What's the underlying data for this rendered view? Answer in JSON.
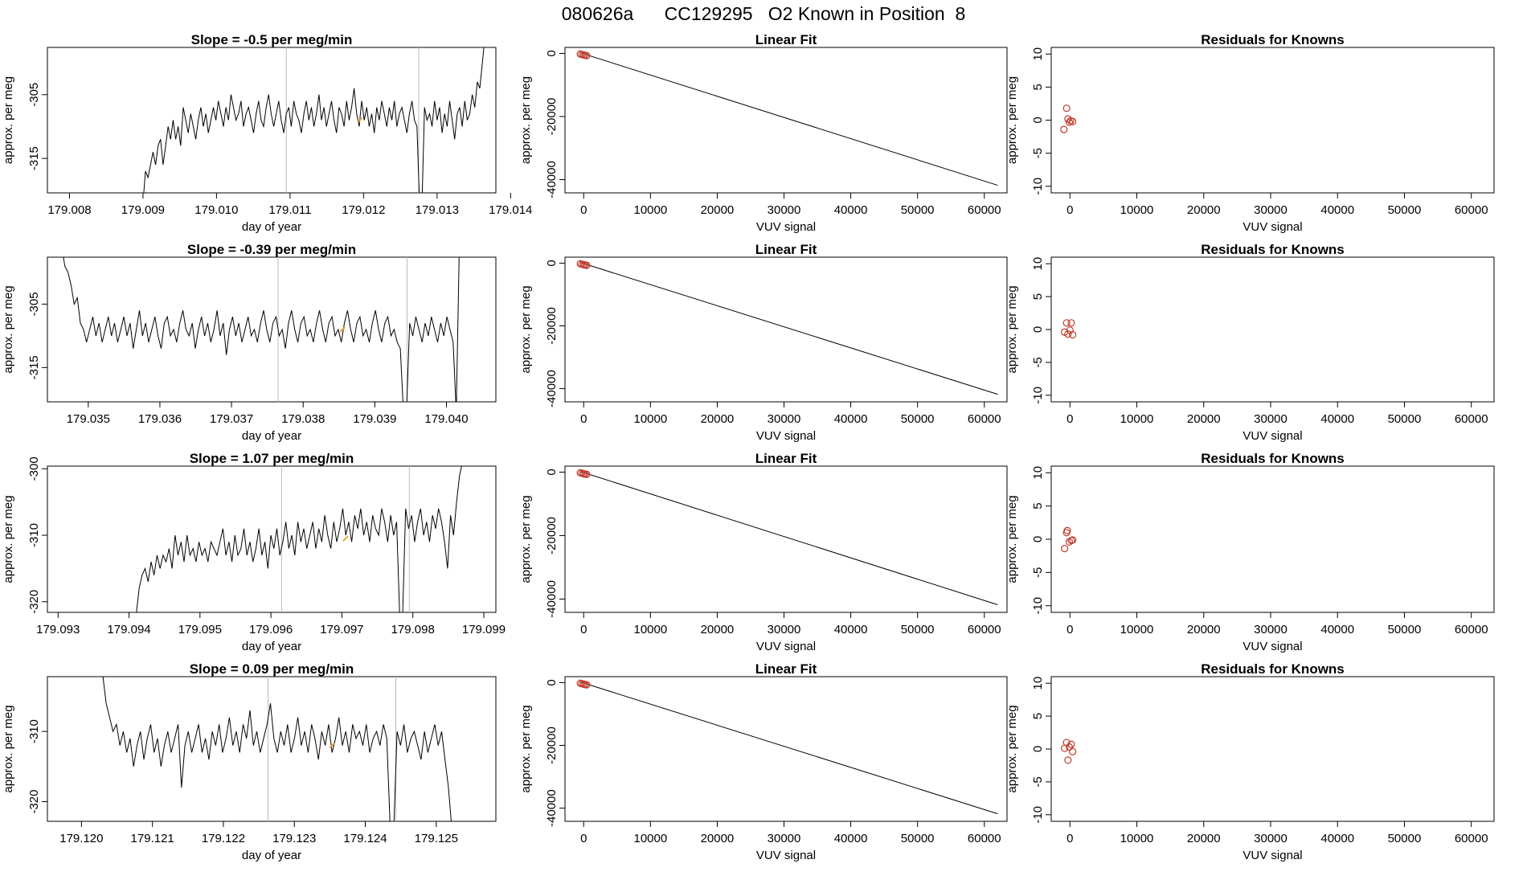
{
  "figure_title": "080626a      CC129295   O2 Known in Position  8",
  "colors": {
    "trace": "#000000",
    "circle": "#c0392b",
    "marker": "#e8a33a",
    "guide": "#bbbbbb",
    "fit": "#000000"
  },
  "chart_data": [
    {
      "type": "line",
      "title": "Slope =  -0.5  per meg/min",
      "xlabel": "day of year",
      "ylabel": "approx. per meg",
      "xlim": [
        179.0077,
        179.0138
      ],
      "ylim": [
        -320.4,
        -297.6
      ],
      "xticks": [
        "179.008",
        "179.009",
        "179.010",
        "179.011",
        "179.012",
        "179.013",
        "179.014"
      ],
      "yticks": [
        "-305",
        "-315"
      ],
      "x_start": 179.009,
      "x_end": 179.01365,
      "vlines": [
        179.01095,
        179.01275
      ],
      "marker": [
        179.01195,
        -309
      ],
      "y": [
        -322,
        -317,
        -318,
        -316,
        -314,
        -316,
        -313,
        -312,
        -316,
        -313,
        -310,
        -312,
        -309,
        -312,
        -310,
        -313,
        -307,
        -309,
        -311,
        -308,
        -310,
        -312,
        -309,
        -307,
        -310,
        -308,
        -311,
        -309,
        -307,
        -309,
        -306,
        -308,
        -310,
        -307,
        -309,
        -305,
        -307,
        -309,
        -308,
        -306,
        -310,
        -308,
        -307,
        -309,
        -311,
        -308,
        -306,
        -309,
        -310,
        -307,
        -305,
        -308,
        -310,
        -308,
        -306,
        -309,
        -311,
        -308,
        -307,
        -310,
        -306,
        -308,
        -309,
        -311,
        -308,
        -306,
        -309,
        -307,
        -310,
        -308,
        -305,
        -309,
        -307,
        -310,
        -308,
        -306,
        -309,
        -311,
        -307,
        -308,
        -310,
        -306,
        -309,
        -307,
        -304,
        -308,
        -310,
        -306,
        -309,
        -307,
        -310,
        -308,
        -311,
        -307,
        -309,
        -306,
        -308,
        -310,
        -307,
        -309,
        -306,
        -310,
        -308,
        -307,
        -309,
        -311,
        -308,
        -306,
        -309,
        -310,
        -322,
        -322,
        -307,
        -309,
        -308,
        -310,
        -306,
        -309,
        -307,
        -311,
        -308,
        -310,
        -306,
        -309,
        -312,
        -308,
        -307,
        -310,
        -306,
        -309,
        -308,
        -305,
        -307,
        -303,
        -304,
        -300,
        -296
      ]
    },
    {
      "type": "line",
      "title": "Slope =  -0.39  per meg/min",
      "xlabel": "day of year",
      "ylabel": "approx. per meg",
      "xlim": [
        179.03443,
        179.04069
      ],
      "ylim": [
        -320.4,
        -297.6
      ],
      "xticks": [
        "179.035",
        "179.036",
        "179.037",
        "179.038",
        "179.039",
        "179.040"
      ],
      "yticks": [
        "-305",
        "-315"
      ],
      "x_start": 179.03463,
      "x_end": 179.04018,
      "vlines": [
        179.03765,
        179.03945
      ],
      "marker": [
        179.03855,
        -309
      ],
      "y": [
        -296,
        -299,
        -300,
        -302,
        -305,
        -304,
        -308,
        -309,
        -311,
        -309,
        -307,
        -310,
        -308,
        -311,
        -309,
        -307,
        -310,
        -308,
        -311,
        -309,
        -307,
        -310,
        -308,
        -312,
        -309,
        -306,
        -310,
        -308,
        -311,
        -309,
        -307,
        -310,
        -312,
        -308,
        -307,
        -310,
        -309,
        -311,
        -308,
        -306,
        -309,
        -310,
        -308,
        -312,
        -309,
        -307,
        -310,
        -308,
        -311,
        -309,
        -306,
        -310,
        -308,
        -313,
        -309,
        -307,
        -310,
        -308,
        -311,
        -309,
        -307,
        -310,
        -309,
        -311,
        -308,
        -306,
        -309,
        -311,
        -308,
        -307,
        -310,
        -309,
        -312,
        -308,
        -306,
        -309,
        -311,
        -308,
        -307,
        -310,
        -309,
        -311,
        -308,
        -306,
        -309,
        -311,
        -308,
        -307,
        -310,
        -309,
        -311,
        -308,
        -306,
        -309,
        -311,
        -308,
        -307,
        -310,
        -309,
        -311,
        -308,
        -306,
        -309,
        -311,
        -308,
        -307,
        -310,
        -309,
        -311,
        -312,
        -322,
        -322,
        -308,
        -310,
        -307,
        -309,
        -311,
        -308,
        -310,
        -307,
        -309,
        -311,
        -308,
        -310,
        -307,
        -309,
        -311,
        -322,
        -296
      ]
    },
    {
      "type": "line",
      "title": "Slope =  1.07  per meg/min",
      "xlabel": "day of year",
      "ylabel": "approx. per meg",
      "xlim": [
        179.09285,
        179.09917
      ],
      "ylim": [
        -321.6,
        -299.6
      ],
      "xticks": [
        "179.093",
        "179.094",
        "179.095",
        "179.096",
        "179.097",
        "179.098",
        "179.099"
      ],
      "yticks": [
        "-300",
        "-310",
        "-320"
      ],
      "x_start": 179.0941,
      "x_end": 179.0987,
      "vlines": [
        179.09615,
        179.09795
      ],
      "marker": [
        179.09705,
        -310.5
      ],
      "y": [
        -322,
        -318,
        -316,
        -315,
        -317,
        -314,
        -316,
        -313,
        -315,
        -313,
        -314,
        -312,
        -315,
        -310,
        -313,
        -311,
        -314,
        -310,
        -313,
        -312,
        -314,
        -311,
        -313,
        -312,
        -314,
        -311,
        -312,
        -313,
        -311,
        -309,
        -313,
        -311,
        -314,
        -310,
        -313,
        -312,
        -309,
        -313,
        -311,
        -314,
        -312,
        -309,
        -313,
        -311,
        -315,
        -310,
        -312,
        -309,
        -313,
        -311,
        -308,
        -312,
        -310,
        -313,
        -308,
        -311,
        -309,
        -312,
        -310,
        -308,
        -312,
        -309,
        -311,
        -307,
        -310,
        -312,
        -308,
        -311,
        -309,
        -306,
        -310,
        -308,
        -311,
        -307,
        -309,
        -306,
        -310,
        -308,
        -311,
        -307,
        -309,
        -310,
        -306,
        -308,
        -311,
        -307,
        -310,
        -308,
        -322,
        -322,
        -306,
        -309,
        -307,
        -311,
        -308,
        -306,
        -310,
        -308,
        -311,
        -307,
        -309,
        -306,
        -308,
        -311,
        -315,
        -307,
        -310,
        -305,
        -301,
        -299
      ]
    },
    {
      "type": "line",
      "title": "Slope =  0.09  per meg/min",
      "xlabel": "day of year",
      "ylabel": "approx. per meg",
      "xlim": [
        179.11952,
        179.12584
      ],
      "ylim": [
        -322.8,
        -302.2
      ],
      "xticks": [
        "179.120",
        "179.121",
        "179.122",
        "179.123",
        "179.124",
        "179.125"
      ],
      "yticks": [
        "-310",
        "-320"
      ],
      "x_start": 179.1203,
      "x_end": 179.12522,
      "vlines": [
        179.12263,
        179.12443
      ],
      "marker": [
        179.12353,
        -312
      ],
      "y": [
        -302,
        -306,
        -308,
        -310,
        -309,
        -312,
        -310,
        -313,
        -311,
        -315,
        -312,
        -310,
        -314,
        -311,
        -309,
        -313,
        -311,
        -315,
        -312,
        -310,
        -313,
        -311,
        -309,
        -318,
        -312,
        -310,
        -313,
        -311,
        -309,
        -313,
        -311,
        -314,
        -310,
        -312,
        -309,
        -313,
        -311,
        -308,
        -312,
        -310,
        -313,
        -309,
        -311,
        -307,
        -312,
        -310,
        -313,
        -311,
        -309,
        -306,
        -311,
        -313,
        -310,
        -312,
        -309,
        -313,
        -311,
        -308,
        -312,
        -310,
        -313,
        -309,
        -311,
        -314,
        -310,
        -312,
        -309,
        -313,
        -311,
        -308,
        -312,
        -310,
        -313,
        -309,
        -311,
        -310,
        -312,
        -309,
        -313,
        -311,
        -310,
        -312,
        -309,
        -311,
        -324,
        -324,
        -310,
        -312,
        -309,
        -313,
        -311,
        -310,
        -312,
        -314,
        -310,
        -313,
        -311,
        -309,
        -312,
        -310,
        -314,
        -318,
        -324
      ]
    },
    {
      "type": "scatter",
      "title": "Linear Fit",
      "xlabel": "VUV signal",
      "ylabel": "approx. per meg",
      "xlim": [
        -2800,
        63400
      ],
      "ylim": [
        -44200,
        1900
      ],
      "xticks": [
        "0",
        "10000",
        "20000",
        "30000",
        "40000",
        "50000",
        "60000"
      ],
      "yticks": [
        "0",
        "-20000",
        "-40000"
      ],
      "points": [
        [
          -500,
          -200
        ],
        [
          -250,
          -350
        ],
        [
          0,
          -500
        ],
        [
          200,
          -600
        ],
        [
          450,
          -700
        ]
      ],
      "line": [
        [
          -500,
          200
        ],
        [
          62000,
          -41800
        ]
      ]
    },
    {
      "type": "scatter",
      "title": "Linear Fit",
      "xlabel": "VUV signal",
      "ylabel": "approx. per meg",
      "xlim": [
        -2800,
        63400
      ],
      "ylim": [
        -44200,
        1900
      ],
      "xticks": [
        "0",
        "10000",
        "20000",
        "30000",
        "40000",
        "50000",
        "60000"
      ],
      "yticks": [
        "0",
        "-20000",
        "-40000"
      ],
      "points": [
        [
          -500,
          -200
        ],
        [
          -250,
          -350
        ],
        [
          0,
          -500
        ],
        [
          200,
          -600
        ],
        [
          450,
          -700
        ]
      ],
      "line": [
        [
          -500,
          200
        ],
        [
          62000,
          -41800
        ]
      ]
    },
    {
      "type": "scatter",
      "title": "Linear Fit",
      "xlabel": "VUV signal",
      "ylabel": "approx. per meg",
      "xlim": [
        -2800,
        63400
      ],
      "ylim": [
        -44200,
        1900
      ],
      "xticks": [
        "0",
        "10000",
        "20000",
        "30000",
        "40000",
        "50000",
        "60000"
      ],
      "yticks": [
        "0",
        "-20000",
        "-40000"
      ],
      "points": [
        [
          -500,
          -200
        ],
        [
          -250,
          -350
        ],
        [
          0,
          -500
        ],
        [
          200,
          -600
        ],
        [
          450,
          -700
        ]
      ],
      "line": [
        [
          -500,
          200
        ],
        [
          62000,
          -41800
        ]
      ]
    },
    {
      "type": "scatter",
      "title": "Linear Fit",
      "xlabel": "VUV signal",
      "ylabel": "approx. per meg",
      "xlim": [
        -2800,
        63400
      ],
      "ylim": [
        -44200,
        1900
      ],
      "xticks": [
        "0",
        "10000",
        "20000",
        "30000",
        "40000",
        "50000",
        "60000"
      ],
      "yticks": [
        "0",
        "-20000",
        "-40000"
      ],
      "points": [
        [
          -500,
          -200
        ],
        [
          -250,
          -350
        ],
        [
          0,
          -500
        ],
        [
          200,
          -600
        ],
        [
          450,
          -700
        ]
      ],
      "line": [
        [
          -500,
          200
        ],
        [
          62000,
          -41800
        ]
      ]
    },
    {
      "type": "scatter",
      "title": "Residuals for Knowns",
      "xlabel": "VUV signal",
      "ylabel": "approx. per meg",
      "xlim": [
        -2800,
        63400
      ],
      "ylim": [
        -11,
        11
      ],
      "xticks": [
        "0",
        "10000",
        "20000",
        "30000",
        "40000",
        "50000",
        "60000"
      ],
      "yticks": [
        "10",
        "5",
        "0",
        "-5",
        "-10"
      ],
      "points": [
        [
          -900,
          -1.4
        ],
        [
          -500,
          1.8
        ],
        [
          -300,
          0.2
        ],
        [
          -100,
          -0.3
        ],
        [
          100,
          -0.1
        ],
        [
          400,
          -0.2
        ]
      ]
    },
    {
      "type": "scatter",
      "title": "Residuals for Knowns",
      "xlabel": "VUV signal",
      "ylabel": "approx. per meg",
      "xlim": [
        -2800,
        63400
      ],
      "ylim": [
        -11,
        11
      ],
      "xticks": [
        "0",
        "10000",
        "20000",
        "30000",
        "40000",
        "50000",
        "60000"
      ],
      "yticks": [
        "10",
        "5",
        "0",
        "-5",
        "-10"
      ],
      "points": [
        [
          -800,
          -0.4
        ],
        [
          -500,
          1.0
        ],
        [
          -300,
          -0.7
        ],
        [
          0,
          -0.1
        ],
        [
          200,
          1.0
        ],
        [
          400,
          -0.8
        ]
      ]
    },
    {
      "type": "scatter",
      "title": "Residuals for Knowns",
      "xlabel": "VUV signal",
      "ylabel": "approx. per meg",
      "xlim": [
        -2800,
        63400
      ],
      "ylim": [
        -11,
        11
      ],
      "xticks": [
        "0",
        "10000",
        "20000",
        "30000",
        "40000",
        "50000",
        "60000"
      ],
      "yticks": [
        "10",
        "5",
        "0",
        "-5",
        "-10"
      ],
      "points": [
        [
          -800,
          -1.4
        ],
        [
          -500,
          1.0
        ],
        [
          -400,
          1.3
        ],
        [
          -100,
          -0.4
        ],
        [
          200,
          -0.2
        ],
        [
          400,
          -0.1
        ]
      ]
    },
    {
      "type": "scatter",
      "title": "Residuals for Knowns",
      "xlabel": "VUV signal",
      "ylabel": "approx. per meg",
      "xlim": [
        -2800,
        63400
      ],
      "ylim": [
        -11,
        11
      ],
      "xticks": [
        "0",
        "10000",
        "20000",
        "30000",
        "40000",
        "50000",
        "60000"
      ],
      "yticks": [
        "10",
        "5",
        "0",
        "-5",
        "-10"
      ],
      "points": [
        [
          -800,
          0.1
        ],
        [
          -500,
          1.0
        ],
        [
          -300,
          -1.7
        ],
        [
          -100,
          0.3
        ],
        [
          200,
          0.7
        ],
        [
          400,
          -0.4
        ]
      ]
    }
  ]
}
